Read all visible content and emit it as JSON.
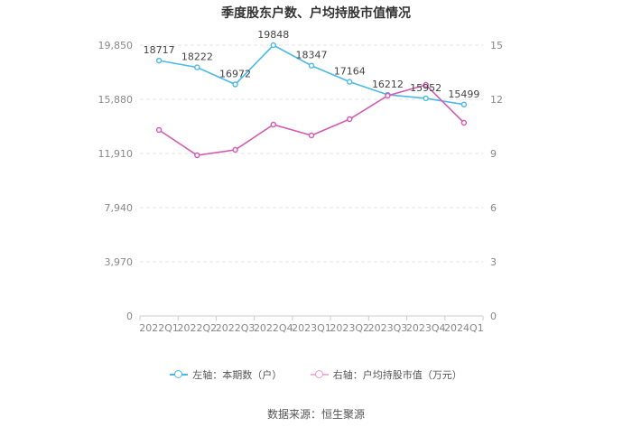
{
  "chart_data": {
    "type": "line",
    "title": "季度股东户数、户均持股市值情况",
    "categories": [
      "2022Q1",
      "2022Q2",
      "2022Q3",
      "2022Q4",
      "2023Q1",
      "2023Q2",
      "2023Q3",
      "2023Q4",
      "2024Q1"
    ],
    "left_axis": {
      "ticks": [
        "0",
        "3,970",
        "7,940",
        "11,910",
        "15,880",
        "19,850"
      ],
      "tick_values": [
        0,
        3970,
        7940,
        11910,
        15880,
        19850
      ],
      "ylim": [
        0,
        19850
      ]
    },
    "right_axis": {
      "ticks": [
        "0",
        "3",
        "6",
        "9",
        "12",
        "15"
      ],
      "tick_values": [
        0,
        3,
        6,
        9,
        12,
        15
      ],
      "ylim": [
        0,
        15
      ]
    },
    "series": [
      {
        "name": "左轴：本期数（户）",
        "axis": "left",
        "color": "#4bb8ea",
        "values": [
          18717,
          18222,
          16972,
          19848,
          18347,
          17164,
          16212,
          15952,
          15499
        ],
        "labels": [
          "18717",
          "18222",
          "16972",
          "19848",
          "18347",
          "17164",
          "16212",
          "15952",
          "15499"
        ]
      },
      {
        "name": "右轴：户均持股市值（万元）",
        "axis": "right",
        "color": "#d45ab0",
        "values": [
          10.3,
          8.9,
          9.2,
          10.6,
          10.0,
          10.9,
          12.2,
          12.8,
          10.7
        ]
      }
    ],
    "grid": true,
    "legend_position": "bottom"
  },
  "source": "数据来源：恒生聚源"
}
